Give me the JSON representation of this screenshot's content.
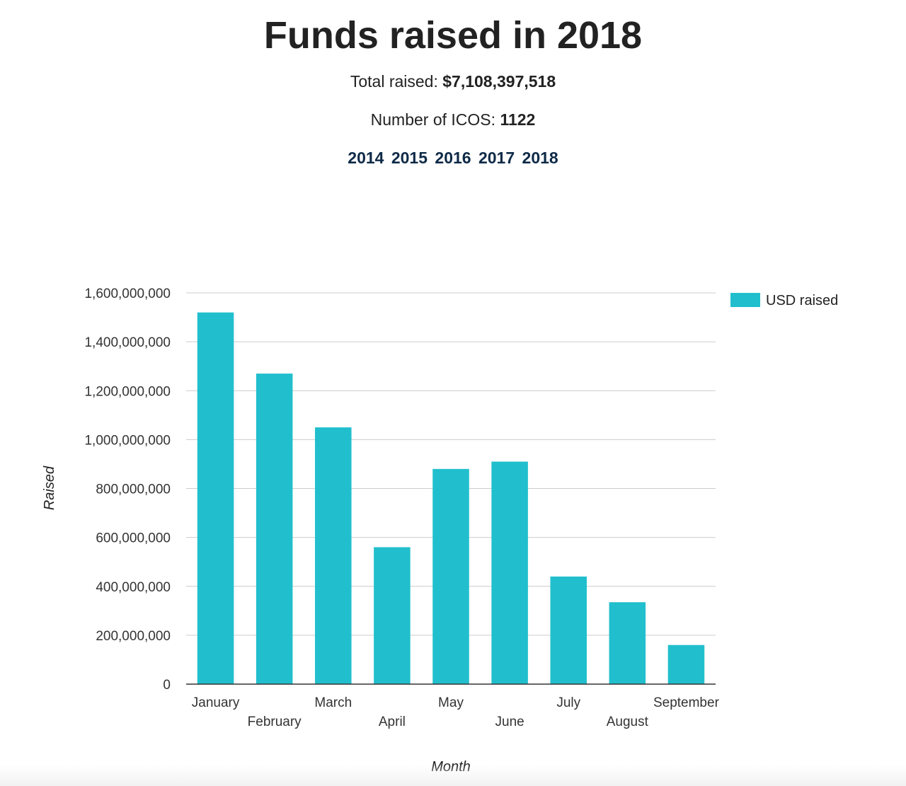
{
  "header": {
    "title": "Funds raised in 2018",
    "total_label": "Total raised: ",
    "total_value": "$7,108,397,518",
    "count_label": "Number of ICOS: ",
    "count_value": "1122",
    "years": [
      "2014",
      "2015",
      "2016",
      "2017",
      "2018"
    ]
  },
  "colors": {
    "bar": "#21bfcd",
    "grid": "#cccccc",
    "axis": "#333333",
    "year_link": "#0e2a47"
  },
  "chart_data": {
    "type": "bar",
    "title": "Funds raised in 2018",
    "xlabel": "Month",
    "ylabel": "Raised",
    "categories": [
      "January",
      "February",
      "March",
      "April",
      "May",
      "June",
      "July",
      "August",
      "September"
    ],
    "series": [
      {
        "name": "USD raised",
        "values": [
          1520000000,
          1270000000,
          1050000000,
          560000000,
          880000000,
          910000000,
          440000000,
          335000000,
          160000000
        ]
      }
    ],
    "ylim": [
      0,
      1600000000
    ],
    "yticks": [
      0,
      200000000,
      400000000,
      600000000,
      800000000,
      1000000000,
      1200000000,
      1400000000,
      1600000000
    ],
    "ytick_labels": [
      "0",
      "200,000,000",
      "400,000,000",
      "600,000,000",
      "800,000,000",
      "1,000,000,000",
      "1,200,000,000",
      "1,400,000,000",
      "1,600,000,000"
    ],
    "grid": true,
    "legend_position": "right"
  }
}
